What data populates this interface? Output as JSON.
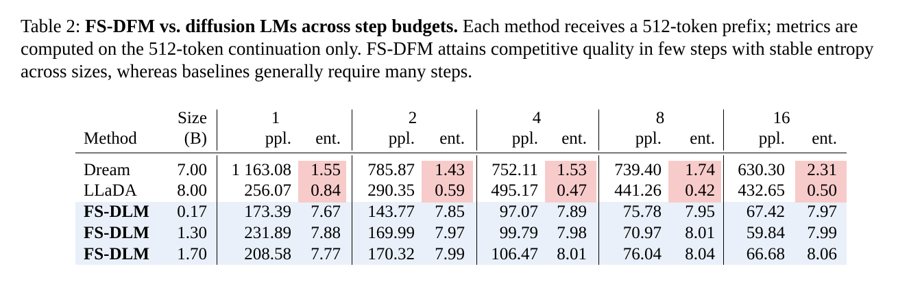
{
  "caption": {
    "label": "Table 2:",
    "title": "FS-DFM vs. diffusion LMs across step budgets.",
    "text": "Each method receives a 512-token prefix; metrics are computed on the 512-token continuation only. FS-DFM attains competitive quality in few steps with stable entropy across sizes, whereas baselines generally require many steps."
  },
  "table": {
    "group_header": [
      "Size",
      "1",
      "2",
      "4",
      "8",
      "16"
    ],
    "columns": [
      "Method",
      "(B)",
      "ppl.",
      "ent.",
      "ppl.",
      "ent.",
      "ppl.",
      "ent.",
      "ppl.",
      "ent.",
      "ppl.",
      "ent."
    ],
    "rows": [
      [
        "Dream",
        "7.00",
        "1 163.08",
        "1.55",
        "785.87",
        "1.43",
        "752.11",
        "1.53",
        "739.40",
        "1.74",
        "630.30",
        "2.31"
      ],
      [
        "LLaDA",
        "8.00",
        "256.07",
        "0.84",
        "290.35",
        "0.59",
        "495.17",
        "0.47",
        "441.26",
        "0.42",
        "432.65",
        "0.50"
      ],
      [
        "FS-DLM",
        "0.17",
        "173.39",
        "7.67",
        "143.77",
        "7.85",
        "97.07",
        "7.89",
        "75.78",
        "7.95",
        "67.42",
        "7.97"
      ],
      [
        "FS-DLM",
        "1.30",
        "231.89",
        "7.88",
        "169.99",
        "7.97",
        "99.79",
        "7.98",
        "70.97",
        "8.01",
        "59.84",
        "7.99"
      ],
      [
        "FS-DLM",
        "1.70",
        "208.58",
        "7.77",
        "170.32",
        "7.99",
        "106.47",
        "8.01",
        "76.04",
        "8.04",
        "66.68",
        "8.06"
      ]
    ]
  }
}
